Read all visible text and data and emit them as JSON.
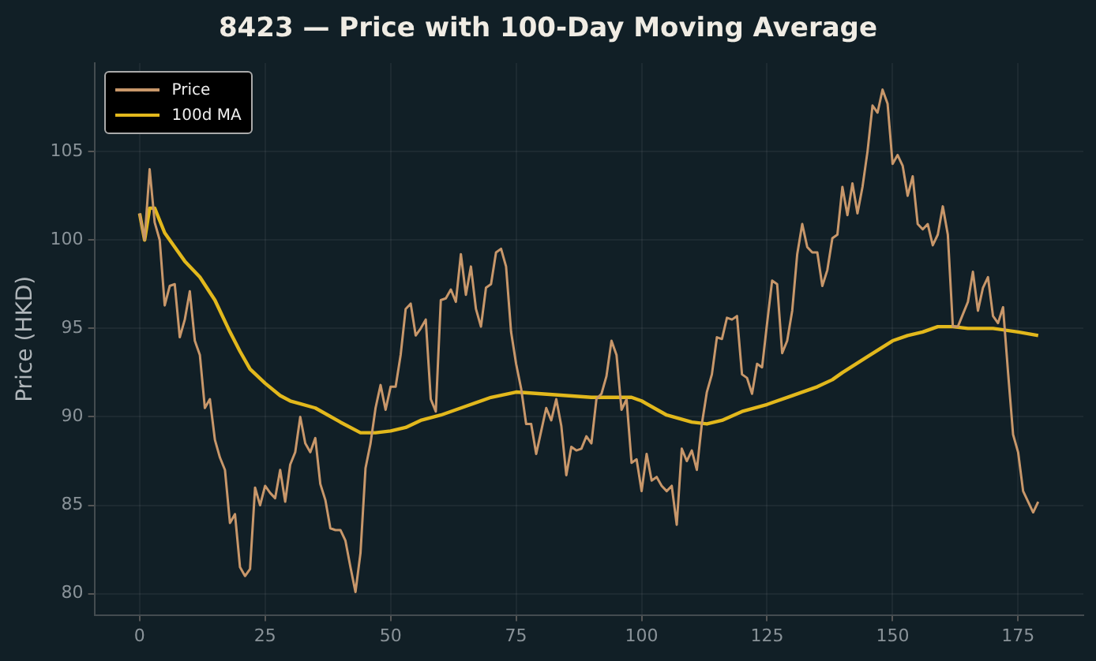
{
  "chart_data": {
    "type": "line",
    "title": "8423 — Price with 100-Day Moving Average",
    "ylabel": "Price (HKD)",
    "x": [
      0,
      1,
      2,
      3,
      4,
      5,
      6,
      7,
      8,
      9,
      10,
      11,
      12,
      13,
      14,
      15,
      16,
      17,
      18,
      19,
      20,
      21,
      22,
      23,
      24,
      25,
      26,
      27,
      28,
      29,
      30,
      31,
      32,
      33,
      34,
      35,
      36,
      37,
      38,
      39,
      40,
      41,
      42,
      43,
      44,
      45,
      46,
      47,
      48,
      49,
      50,
      51,
      52,
      53,
      54,
      55,
      56,
      57,
      58,
      59,
      60,
      61,
      62,
      63,
      64,
      65,
      66,
      67,
      68,
      69,
      70,
      71,
      72,
      73,
      74,
      75,
      76,
      77,
      78,
      79,
      80,
      81,
      82,
      83,
      84,
      85,
      86,
      87,
      88,
      89,
      90,
      91,
      92,
      93,
      94,
      95,
      96,
      97,
      98,
      99,
      100,
      101,
      102,
      103,
      104,
      105,
      106,
      107,
      108,
      109,
      110,
      111,
      112,
      113,
      114,
      115,
      116,
      117,
      118,
      119,
      120,
      121,
      122,
      123,
      124,
      125,
      126,
      127,
      128,
      129,
      130,
      131,
      132,
      133,
      134,
      135,
      136,
      137,
      138,
      139,
      140,
      141,
      142,
      143,
      144,
      145,
      146,
      147,
      148,
      149,
      150,
      151,
      152,
      153,
      154,
      155,
      156,
      157,
      158,
      159,
      160,
      161,
      162,
      163,
      164,
      165,
      166,
      167,
      168,
      169,
      170,
      171,
      172,
      173,
      174,
      175,
      176,
      177,
      178,
      179
    ],
    "series": [
      {
        "name": "Price",
        "color": "#c8976a",
        "values": [
          101.5,
          100,
          104,
          101,
          100,
          96.3,
          97.4,
          97.5,
          94.5,
          95.5,
          97.1,
          94.3,
          93.5,
          90.5,
          91,
          88.7,
          87.7,
          87,
          84,
          84.5,
          81.5,
          81,
          81.4,
          86,
          85,
          86.1,
          85.7,
          85.4,
          87,
          85.2,
          87.3,
          88,
          90,
          88.5,
          88,
          88.8,
          86.2,
          85.3,
          83.7,
          83.6,
          83.6,
          83,
          81.5,
          80.1,
          82.3,
          87.1,
          88.5,
          90.5,
          91.8,
          90.4,
          91.7,
          91.7,
          93.5,
          96.1,
          96.4,
          94.6,
          95,
          95.5,
          91,
          90.3,
          96.6,
          96.7,
          97.2,
          96.5,
          99.2,
          96.9,
          98.5,
          96.1,
          95.1,
          97.3,
          97.5,
          99.3,
          99.5,
          98.5,
          94.8,
          93,
          91.6,
          89.6,
          89.6,
          87.9,
          89.2,
          90.5,
          89.8,
          91,
          89.5,
          86.7,
          88.3,
          88.1,
          88.2,
          88.9,
          88.5,
          91,
          91.3,
          92.3,
          94.3,
          93.5,
          90.4,
          91,
          87.4,
          87.6,
          85.8,
          87.9,
          86.4,
          86.6,
          86.1,
          85.8,
          86.1,
          83.9,
          88.2,
          87.5,
          88.1,
          87,
          89.6,
          91.4,
          92.4,
          94.5,
          94.4,
          95.6,
          95.5,
          95.7,
          92.4,
          92.2,
          91.3,
          93,
          92.8,
          95.3,
          97.7,
          97.5,
          93.6,
          94.3,
          96,
          99.2,
          100.9,
          99.6,
          99.3,
          99.3,
          97.4,
          98.3,
          100.1,
          100.3,
          103,
          101.4,
          103.2,
          101.5,
          103,
          105,
          107.6,
          107.2,
          108.5,
          107.7,
          104.3,
          104.8,
          104.2,
          102.5,
          103.6,
          100.9,
          100.6,
          100.9,
          99.7,
          100.3,
          101.9,
          100.3,
          95.1,
          95.1,
          95.8,
          96.5,
          98.2,
          96,
          97.3,
          97.9,
          95.7,
          95.3,
          96.2,
          92.5,
          89,
          88,
          85.8,
          85.2,
          84.6,
          85.2
        ]
      },
      {
        "name": "100d MA",
        "color": "#e2b81c",
        "x": [
          0,
          1,
          2,
          3,
          5,
          7,
          9,
          12,
          15,
          18,
          20,
          22,
          25,
          28,
          30,
          35,
          40,
          44,
          47,
          50,
          53,
          56,
          60,
          65,
          70,
          75,
          80,
          85,
          90,
          95,
          98,
          100,
          105,
          110,
          113,
          116,
          120,
          125,
          130,
          135,
          138,
          140,
          145,
          150,
          153,
          156,
          159,
          162,
          165,
          170,
          175,
          179
        ],
        "values": [
          101.5,
          100,
          101.8,
          101.8,
          100.4,
          99.6,
          98.8,
          97.9,
          96.6,
          94.8,
          93.7,
          92.7,
          91.9,
          91.2,
          90.9,
          90.5,
          89.7,
          89.1,
          89.1,
          89.2,
          89.4,
          89.8,
          90.1,
          90.6,
          91.1,
          91.4,
          91.3,
          91.2,
          91.1,
          91.1,
          91.1,
          90.9,
          90.1,
          89.7,
          89.6,
          89.8,
          90.3,
          90.7,
          91.2,
          91.7,
          92.1,
          92.5,
          93.4,
          94.3,
          94.6,
          94.8,
          95.1,
          95.1,
          95,
          95,
          94.8,
          94.6
        ]
      }
    ],
    "xlim": [
      -9,
      188
    ],
    "xticks": [
      0,
      25,
      50,
      75,
      100,
      125,
      150,
      175
    ],
    "ylim": [
      78.8,
      110
    ],
    "yticks": [
      80,
      85,
      90,
      95,
      100,
      105
    ],
    "grid": true,
    "legend": "top left"
  }
}
